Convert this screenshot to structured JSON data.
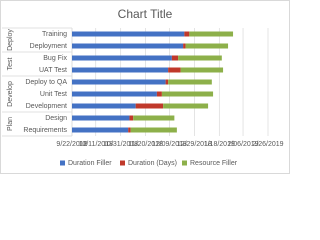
{
  "chart_data": {
    "type": "gantt",
    "title": "Chart Title",
    "groups": [
      {
        "name": "Deploy",
        "categories": [
          "Training",
          "Deployment"
        ]
      },
      {
        "name": "Test",
        "categories": [
          "Bug Fix",
          "UAT Test"
        ]
      },
      {
        "name": "Develop",
        "categories": [
          "Deploy to QA",
          "Unit Test",
          "Development"
        ]
      },
      {
        "name": "Plan",
        "categories": [
          "Design",
          "Requirements"
        ]
      }
    ],
    "series": [
      {
        "name": "Duration Filler",
        "color": "#4472c4",
        "values": [
          43455,
          43454,
          43445,
          43442,
          43440,
          43433,
          43416,
          43411,
          43410
        ]
      },
      {
        "name": "Duration (Days)",
        "color": "#c0392b",
        "values": [
          4,
          2,
          5,
          10,
          2,
          4,
          22,
          3,
          2
        ]
      },
      {
        "name": "Resource Filler",
        "color": "#8db04a",
        "values": [
          35,
          34,
          35,
          34,
          35,
          41,
          36,
          33,
          37
        ]
      }
    ],
    "xlim": [
      43365,
      43522
    ],
    "xticks": [
      {
        "value": 43365,
        "label": "9/22/2018"
      },
      {
        "value": 43384,
        "label": "10/11/2018"
      },
      {
        "value": 43404,
        "label": "10/31/2018"
      },
      {
        "value": 43424,
        "label": "11/20/2018"
      },
      {
        "value": 43443,
        "label": "12/09/2018"
      },
      {
        "value": 43463,
        "label": "12/29/2018"
      },
      {
        "value": 43483,
        "label": "1/18/2019"
      },
      {
        "value": 43502,
        "label": "2/06/2019"
      },
      {
        "value": 43522,
        "label": "2/26/2019"
      }
    ],
    "grid": true,
    "legend": "bottom"
  }
}
